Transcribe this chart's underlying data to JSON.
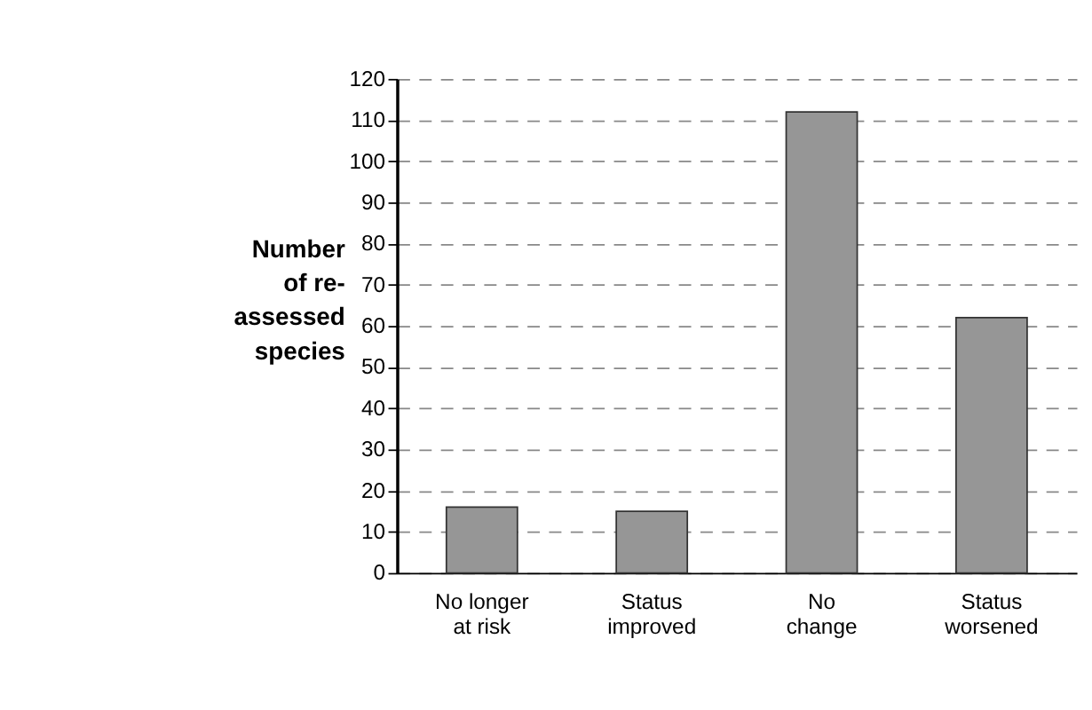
{
  "chart_data": {
    "type": "bar",
    "ylabel": "Number\nof re-\nassessed\nspecies",
    "categories": [
      "No longer\nat risk",
      "Status\nimproved",
      "No\nchange",
      "Status\nworsened"
    ],
    "values": [
      16,
      15,
      112,
      62
    ],
    "color": "#969696",
    "ylim": [
      0,
      120
    ],
    "yticks": [
      0,
      10,
      20,
      30,
      40,
      50,
      60,
      70,
      80,
      90,
      100,
      110,
      120
    ],
    "grid": "y"
  }
}
